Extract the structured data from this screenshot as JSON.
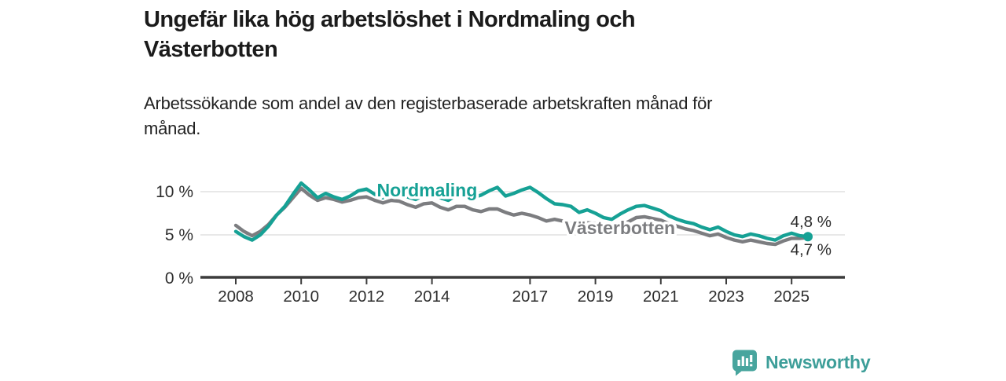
{
  "header": {
    "title": "Ungefär lika hög arbetslöshet i Nordmaling och Västerbotten",
    "title_lines": [
      "Ungefär lika hög arbetslöshet i Nordmaling och",
      "Västerbotten"
    ],
    "subtitle": "Arbetssökande som andel av den registerbaserade arbetskraften månad för månad.",
    "subtitle_lines": [
      "Arbetssökande som andel av den registerbaserade arbetskraften månad för",
      "månad."
    ]
  },
  "footer": {
    "brand": "Newsworthy",
    "brand_color": "#3d9e99",
    "logo_icon": "bar-chart-speech-bubble",
    "logo_color": "#48a59e"
  },
  "chart_data": {
    "type": "line",
    "x_unit": "decimal_year",
    "xlim": [
      2008,
      2025.5
    ],
    "ylim": [
      0,
      11.5
    ],
    "grid": "horizontal",
    "grid_color": "#d9d9d9",
    "axis_color": "#3c3c3c",
    "tick_text_color": "#2e2e2e",
    "end_label_color": "#2b2b2b",
    "yticks": [
      {
        "value": 0,
        "label": "0 %"
      },
      {
        "value": 5,
        "label": "5 %"
      },
      {
        "value": 10,
        "label": "10 %"
      }
    ],
    "xticks": [
      2008,
      2010,
      2012,
      2014,
      2017,
      2019,
      2021,
      2023,
      2025
    ],
    "x": [
      2008,
      2008.25,
      2008.5,
      2008.75,
      2009,
      2009.25,
      2009.5,
      2009.75,
      2010,
      2010.25,
      2010.5,
      2010.75,
      2011,
      2011.25,
      2011.5,
      2011.75,
      2012,
      2012.25,
      2012.5,
      2012.75,
      2013,
      2013.25,
      2013.5,
      2013.75,
      2014,
      2014.25,
      2014.5,
      2014.75,
      2015,
      2015.25,
      2015.5,
      2015.75,
      2016,
      2016.25,
      2016.5,
      2016.75,
      2017,
      2017.25,
      2017.5,
      2017.75,
      2018,
      2018.25,
      2018.5,
      2018.75,
      2019,
      2019.25,
      2019.5,
      2019.75,
      2020,
      2020.25,
      2020.5,
      2020.75,
      2021,
      2021.25,
      2021.5,
      2021.75,
      2022,
      2022.25,
      2022.5,
      2022.75,
      2023,
      2023.25,
      2023.5,
      2023.75,
      2024,
      2024.25,
      2024.5,
      2024.75,
      2025,
      2025.25,
      2025.5
    ],
    "series": [
      {
        "name": "Västerbotten",
        "color": "#7c7d80",
        "label_pos": {
          "x": 2019.75,
          "y": 5.8
        },
        "end_label": "4,7 %",
        "end_label_side": "below",
        "end_dot": false,
        "values": [
          6.1,
          5.4,
          4.9,
          5.4,
          6.2,
          7.3,
          8.2,
          9.3,
          10.4,
          9.6,
          9.0,
          9.3,
          9.1,
          8.8,
          9.0,
          9.3,
          9.4,
          9.0,
          8.7,
          9.0,
          8.9,
          8.5,
          8.2,
          8.6,
          8.7,
          8.2,
          7.9,
          8.3,
          8.3,
          7.9,
          7.7,
          8.0,
          8.0,
          7.6,
          7.3,
          7.5,
          7.3,
          7.0,
          6.6,
          6.8,
          6.6,
          6.3,
          6.1,
          6.4,
          6.3,
          6.0,
          5.9,
          6.2,
          6.5,
          7.0,
          7.1,
          6.9,
          6.7,
          6.3,
          6.0,
          5.7,
          5.5,
          5.2,
          4.9,
          5.1,
          4.7,
          4.4,
          4.2,
          4.4,
          4.2,
          4.0,
          3.9,
          4.3,
          4.6,
          4.6,
          4.7
        ]
      },
      {
        "name": "Nordmaling",
        "color": "#16a195",
        "label_pos": {
          "x": 2013.85,
          "y": 10.2
        },
        "end_label": "4,8 %",
        "end_label_side": "above",
        "end_dot": true,
        "values": [
          5.4,
          4.8,
          4.4,
          5.0,
          6.0,
          7.3,
          8.3,
          9.7,
          11.0,
          10.2,
          9.3,
          9.8,
          9.4,
          9.1,
          9.5,
          10.1,
          10.3,
          9.7,
          9.3,
          10.0,
          9.9,
          9.4,
          9.1,
          9.6,
          9.8,
          9.3,
          9.0,
          9.6,
          9.8,
          9.3,
          9.6,
          10.1,
          10.5,
          9.5,
          9.8,
          10.2,
          10.5,
          9.9,
          9.2,
          8.6,
          8.5,
          8.3,
          7.6,
          7.9,
          7.5,
          7.0,
          6.8,
          7.4,
          7.9,
          8.3,
          8.4,
          8.1,
          7.8,
          7.2,
          6.8,
          6.5,
          6.3,
          5.9,
          5.6,
          5.9,
          5.4,
          5.0,
          4.8,
          5.1,
          4.9,
          4.6,
          4.4,
          4.9,
          5.2,
          4.9,
          4.8
        ]
      }
    ]
  }
}
